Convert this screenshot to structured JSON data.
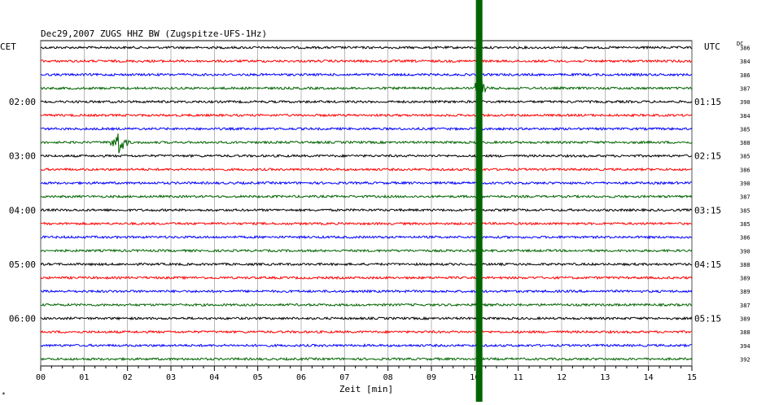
{
  "header": {
    "title": "Dec29,2007   ZUGS HHZ BW (Zugspitze-UFS-1Hz)",
    "left_label": "CET",
    "right_label": "UTC",
    "dc_label": "DC",
    "corner_mark": "*"
  },
  "chart_data": {
    "type": "line",
    "title": "Dec29,2007   ZUGS HHZ BW (Zugspitze-UFS-1Hz)",
    "xlabel": "Zeit [min]",
    "ylabel": "",
    "xlim": [
      0,
      15
    ],
    "x_ticks": [
      "00",
      "01",
      "02",
      "03",
      "04",
      "05",
      "06",
      "07",
      "08",
      "09",
      "10",
      "11",
      "12",
      "13",
      "14",
      "15"
    ],
    "grid": true,
    "trace_count": 24,
    "trace_colors": [
      "#000000",
      "#ff0000",
      "#0000ff",
      "#006400"
    ],
    "left_time_labels": [
      {
        "trace": 4,
        "label": "02:00"
      },
      {
        "trace": 8,
        "label": "03:00"
      },
      {
        "trace": 12,
        "label": "04:00"
      },
      {
        "trace": 16,
        "label": "05:00"
      },
      {
        "trace": 20,
        "label": "06:00"
      }
    ],
    "right_time_labels": [
      {
        "trace": 4,
        "label": "01:15"
      },
      {
        "trace": 8,
        "label": "02:15"
      },
      {
        "trace": 12,
        "label": "03:15"
      },
      {
        "trace": 16,
        "label": "04:15"
      },
      {
        "trace": 20,
        "label": "05:15"
      }
    ],
    "dc_values": [
      "386",
      "384",
      "386",
      "387",
      "390",
      "384",
      "385",
      "388",
      "385",
      "386",
      "390",
      "387",
      "385",
      "385",
      "386",
      "390",
      "388",
      "389",
      "389",
      "387",
      "389",
      "388",
      "394",
      "392"
    ],
    "marker": {
      "x_min": 10.1,
      "color": "#006400"
    },
    "events": [
      {
        "trace": 7,
        "x_min": 1.6,
        "x_max": 2.4,
        "peak_min": 1.8
      },
      {
        "trace": 3,
        "x_min": 10.0,
        "x_max": 10.3,
        "peak_min": 10.12
      }
    ]
  }
}
